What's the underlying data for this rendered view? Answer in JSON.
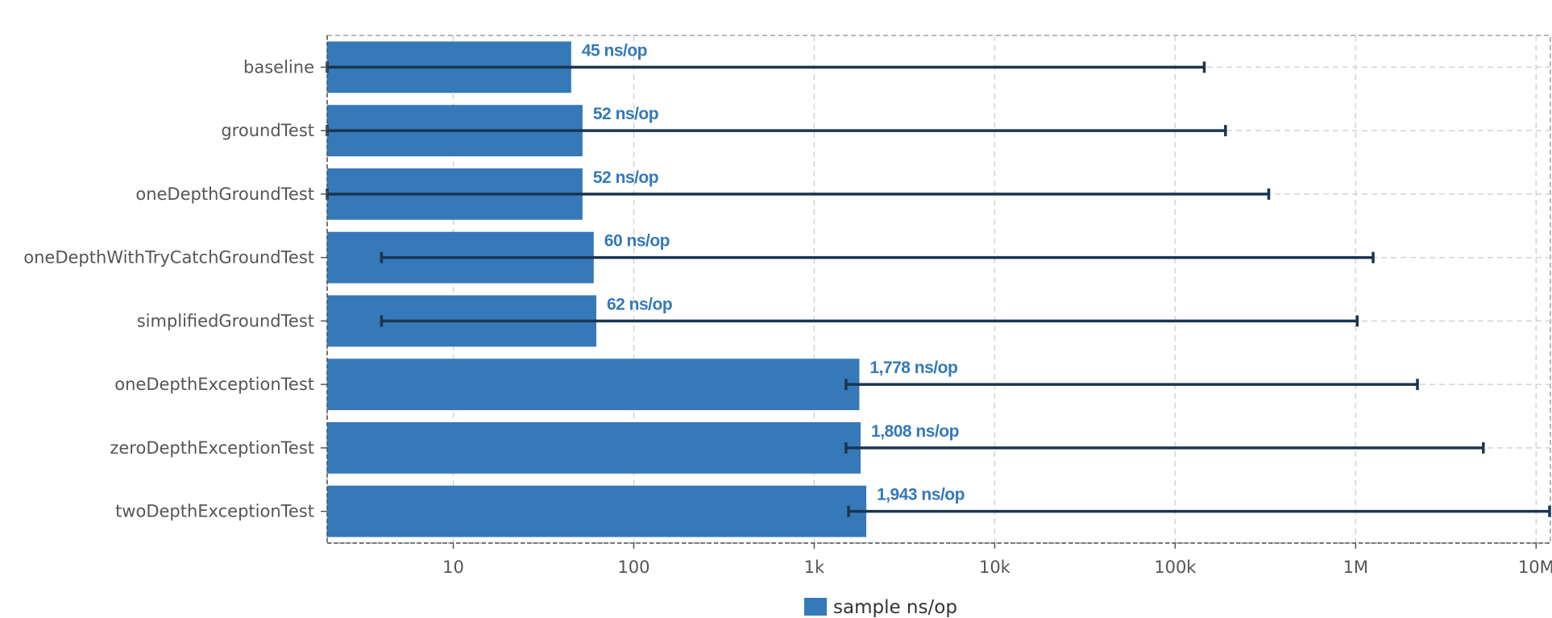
{
  "chart_data": {
    "type": "bar",
    "orientation": "horizontal",
    "x_scale": "log",
    "xlim": [
      2,
      12000000
    ],
    "categories": [
      "baseline",
      "groundTest",
      "oneDepthGroundTest",
      "oneDepthWithTryCatchGroundTest",
      "simplifiedGroundTest",
      "oneDepthExceptionTest",
      "zeroDepthExceptionTest",
      "twoDepthExceptionTest"
    ],
    "series": [
      {
        "name": "sample ns/op",
        "values": [
          45,
          52,
          52,
          60,
          62,
          1778,
          1808,
          1943
        ],
        "error_low": [
          2,
          2,
          2,
          4,
          4,
          1500,
          1500,
          1550
        ],
        "error_high": [
          145000,
          190000,
          330000,
          1250000,
          1020000,
          2200000,
          5100000,
          12000000
        ]
      }
    ],
    "value_labels": [
      "45 ns/op",
      "52 ns/op",
      "52 ns/op",
      "60 ns/op",
      "62 ns/op",
      "1,778 ns/op",
      "1,808 ns/op",
      "1,943 ns/op"
    ],
    "x_ticks": [
      {
        "value": 10,
        "label": "10"
      },
      {
        "value": 100,
        "label": "100"
      },
      {
        "value": 1000,
        "label": "1k"
      },
      {
        "value": 10000,
        "label": "10k"
      },
      {
        "value": 100000,
        "label": "100k"
      },
      {
        "value": 1000000,
        "label": "1M"
      },
      {
        "value": 10000000,
        "label": "10M"
      }
    ],
    "grid": true,
    "legend_position": "bottom",
    "title": "",
    "xlabel": "",
    "ylabel": ""
  },
  "colors": {
    "bar": "#3579b8",
    "error_bar": "#1b3550",
    "value_label": "#3579b8"
  }
}
